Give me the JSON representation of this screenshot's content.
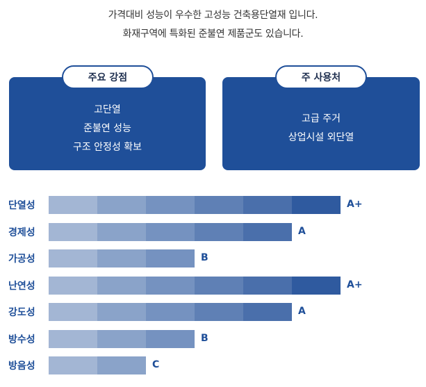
{
  "intro": {
    "line1": "가격대비 성능이 우수한 고성능 건축용단열재 입니다.",
    "line2": "화재구역에 특화된 준불연 제품군도 있습니다."
  },
  "cards": {
    "strengths": {
      "title": "주요 강점",
      "items": [
        "고단열",
        "준불연 성능",
        "구조 안정성 확보"
      ]
    },
    "uses": {
      "title": "주 사용처",
      "items": [
        "고급 주거",
        "상업시설 외단열"
      ]
    }
  },
  "ratings": [
    {
      "label": "단열성",
      "grade": "A+",
      "level": 6
    },
    {
      "label": "경제성",
      "grade": "A",
      "level": 5
    },
    {
      "label": "가공성",
      "grade": "B",
      "level": 3
    },
    {
      "label": "난연성",
      "grade": "A+",
      "level": 6
    },
    {
      "label": "강도성",
      "grade": "A",
      "level": 5
    },
    {
      "label": "방수성",
      "grade": "B",
      "level": 3
    },
    {
      "label": "방음성",
      "grade": "C",
      "level": 2
    }
  ],
  "colors": {
    "brand": "#1f4f99",
    "segments": [
      "#a3b6d4",
      "#8aa3c9",
      "#7592c0",
      "#5f80b5",
      "#4a6fab",
      "#2f5a9f"
    ]
  }
}
